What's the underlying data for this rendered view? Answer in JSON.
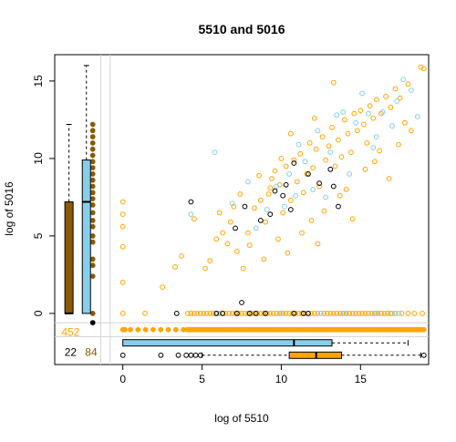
{
  "chart_data": {
    "type": "scatter",
    "title": "5510  and 5016",
    "xlabel": "log of 5510",
    "ylabel": "log of 5016",
    "xlim": [
      -4.3,
      19.3
    ],
    "ylim": [
      -3.3,
      16.7
    ],
    "x_ticks": [
      0,
      5,
      10,
      15
    ],
    "y_ticks": [
      0,
      5,
      10,
      15
    ],
    "grid": false,
    "legend": "none",
    "colors": {
      "orange": "#FFA500",
      "lightblue": "#87CEEB",
      "black": "#000000",
      "brown": "#8B5A00",
      "divider": "#d3d3d3"
    },
    "counts": [
      {
        "label": "452",
        "color": "#FFA500"
      },
      {
        "label": "22",
        "color": "#000000"
      },
      {
        "label": "84",
        "color": "#8B5A00"
      }
    ],
    "boxplots_x": [
      {
        "color": "#87CEEB",
        "whisker_low": 0,
        "q1": 0,
        "median": 10.8,
        "q3": 13.2,
        "whisker_high": 18.0,
        "outliers": []
      },
      {
        "color": "#FFA500",
        "whisker_low": 5.0,
        "q1": 10.5,
        "median": 12.2,
        "q3": 13.8,
        "whisker_high": 18.8,
        "outliers": [
          0,
          2.4,
          3.5,
          4.0,
          4.3,
          4.6,
          4.9,
          19.0
        ]
      }
    ],
    "boxplots_y": [
      {
        "color": "#8B5A00",
        "whisker_low": 0,
        "q1": 0,
        "median": 0,
        "q3": 7.2,
        "whisker_high": 12.2,
        "outliers": []
      },
      {
        "color": "#87CEEB",
        "whisker_low": 0,
        "q1": 0,
        "median": 7.2,
        "q3": 9.9,
        "whisker_high": 16.0,
        "outliers": []
      }
    ],
    "strip_y_values": [
      0,
      2.4,
      3.1,
      3.5,
      4.6,
      5.0,
      5.6,
      6.0,
      6.5,
      7.0,
      7.4,
      7.8,
      8.2,
      8.6,
      9.0,
      9.4,
      9.8,
      10.2,
      10.6,
      11.0,
      11.4,
      11.8,
      12.2
    ],
    "series": [
      {
        "name": "",
        "color": "#FFA500",
        "points": [
          [
            0,
            7.2
          ],
          [
            0,
            6.4
          ],
          [
            0,
            5.6
          ],
          [
            0,
            4.3
          ],
          [
            0,
            2.0
          ],
          [
            3.3,
            3.0
          ],
          [
            3.7,
            3.7
          ],
          [
            2.5,
            1.7
          ],
          [
            5.2,
            2.9
          ],
          [
            5.5,
            3.4
          ],
          [
            6.3,
            5.2
          ],
          [
            6.8,
            5.9
          ],
          [
            6.1,
            6.5
          ],
          [
            4.5,
            6.1
          ],
          [
            7.0,
            6.9
          ],
          [
            7.4,
            7.7
          ],
          [
            7.9,
            5.2
          ],
          [
            8.3,
            6.8
          ],
          [
            8.7,
            7.3
          ],
          [
            9.0,
            5.9
          ],
          [
            9.2,
            7.7
          ],
          [
            9.4,
            8.7
          ],
          [
            9.6,
            9.2
          ],
          [
            9.9,
            8.3
          ],
          [
            10.1,
            6.5
          ],
          [
            10.3,
            9.5
          ],
          [
            10.6,
            7.3
          ],
          [
            10.8,
            9.9
          ],
          [
            11.0,
            8.5
          ],
          [
            11.2,
            10.3
          ],
          [
            11.4,
            7.8
          ],
          [
            11.6,
            9.0
          ],
          [
            11.8,
            11.0
          ],
          [
            12.0,
            9.4
          ],
          [
            12.2,
            10.6
          ],
          [
            12.4,
            8.2
          ],
          [
            12.6,
            11.4
          ],
          [
            12.8,
            9.9
          ],
          [
            13.0,
            10.8
          ],
          [
            13.2,
            12.0
          ],
          [
            13.4,
            9.5
          ],
          [
            13.6,
            11.2
          ],
          [
            13.8,
            10.1
          ],
          [
            14.0,
            12.5
          ],
          [
            14.2,
            11.6
          ],
          [
            14.4,
            10.4
          ],
          [
            14.6,
            12.9
          ],
          [
            14.8,
            11.8
          ],
          [
            15.0,
            13.1
          ],
          [
            15.2,
            12.2
          ],
          [
            15.4,
            11.0
          ],
          [
            15.6,
            13.4
          ],
          [
            15.8,
            12.6
          ],
          [
            16.0,
            13.8
          ],
          [
            16.3,
            12.9
          ],
          [
            16.6,
            14.0
          ],
          [
            16.9,
            13.3
          ],
          [
            17.2,
            14.5
          ],
          [
            17.5,
            13.9
          ],
          [
            18.0,
            14.8
          ],
          [
            18.8,
            15.9
          ],
          [
            19.0,
            15.8
          ],
          [
            13.3,
            14.9
          ],
          [
            12.1,
            12.6
          ],
          [
            10.6,
            11.6
          ],
          [
            8.0,
            4.4
          ],
          [
            7.6,
            2.9
          ],
          [
            9.8,
            4.8
          ],
          [
            11.3,
            5.2
          ],
          [
            12.7,
            6.6
          ],
          [
            14.1,
            8.0
          ],
          [
            15.3,
            9.3
          ],
          [
            16.2,
            10.5
          ],
          [
            17.8,
            12.3
          ],
          [
            10.0,
            10.0
          ],
          [
            9.3,
            8.1
          ],
          [
            8.6,
            8.9
          ],
          [
            11.9,
            6.0
          ],
          [
            13.7,
            7.6
          ],
          [
            15.9,
            9.8
          ],
          [
            7.2,
            4.0
          ],
          [
            6.6,
            4.5
          ],
          [
            5.9,
            4.8
          ],
          [
            8.9,
            3.5
          ],
          [
            10.4,
            3.9
          ],
          [
            12.3,
            4.5
          ],
          [
            14.5,
            6.1
          ],
          [
            16.8,
            8.7
          ],
          [
            17.4,
            10.9
          ],
          [
            18.2,
            11.8
          ]
        ]
      },
      {
        "name": "",
        "color": "#87CEEB",
        "points": [
          [
            5.8,
            10.4
          ],
          [
            4.3,
            6.4
          ],
          [
            7.9,
            8.5
          ],
          [
            9.7,
            8.2
          ],
          [
            10.2,
            6.9
          ],
          [
            10.9,
            7.6
          ],
          [
            11.5,
            9.8
          ],
          [
            12.3,
            11.8
          ],
          [
            13.1,
            10.4
          ],
          [
            13.9,
            13.0
          ],
          [
            14.7,
            12.3
          ],
          [
            15.5,
            12.9
          ],
          [
            16.4,
            13.0
          ],
          [
            17.3,
            13.7
          ],
          [
            18.2,
            14.4
          ],
          [
            18.6,
            12.7
          ],
          [
            9.1,
            6.7
          ],
          [
            8.4,
            5.5
          ],
          [
            12.0,
            8.0
          ],
          [
            14.3,
            9.0
          ],
          [
            16.0,
            11.4
          ],
          [
            11.1,
            10.9
          ],
          [
            13.5,
            12.8
          ],
          [
            15.1,
            14.2
          ],
          [
            17.7,
            15.1
          ],
          [
            10.5,
            9.0
          ],
          [
            12.8,
            7.5
          ],
          [
            6.9,
            7.1
          ],
          [
            15.8,
            10.7
          ],
          [
            17.0,
            12.1
          ]
        ]
      },
      {
        "name": "",
        "color": "#000000",
        "points": [
          [
            4.3,
            7.2
          ],
          [
            7.7,
            6.9
          ],
          [
            7.5,
            0.7
          ],
          [
            8.7,
            6.0
          ],
          [
            9.3,
            6.4
          ],
          [
            10.1,
            7.6
          ],
          [
            10.3,
            8.3
          ],
          [
            10.8,
            9.7
          ],
          [
            11.7,
            9.0
          ],
          [
            12.4,
            8.4
          ],
          [
            13.1,
            9.3
          ],
          [
            13.3,
            8.2
          ],
          [
            10.6,
            6.7
          ],
          [
            9.6,
            7.9
          ],
          [
            7.1,
            5.5
          ],
          [
            13.6,
            6.9
          ]
        ]
      }
    ],
    "zero_y_series": [
      {
        "color": "#FFA500",
        "x": [
          0,
          1.4,
          4.1,
          4.3,
          4.5,
          4.7,
          4.9,
          5.1,
          5.3,
          5.5,
          5.7,
          5.9,
          6.1,
          6.3,
          6.5,
          6.7,
          6.9,
          7.1,
          7.3,
          7.5,
          7.7,
          7.9,
          8.1,
          8.3,
          8.5,
          8.7,
          8.9,
          9.1,
          9.3,
          9.5,
          9.7,
          9.9,
          10.1,
          10.3,
          10.5,
          10.7,
          10.9,
          11.1,
          11.3,
          11.5,
          11.7,
          11.9,
          12.1,
          12.3,
          12.5,
          12.7,
          12.9,
          13.1,
          13.3,
          13.5,
          13.7,
          13.9,
          14.1,
          14.3,
          14.5,
          14.7,
          14.9,
          15.1,
          15.3,
          15.5,
          15.7,
          15.9,
          16.1,
          16.3,
          16.5,
          16.7,
          16.9,
          17.2,
          17.6,
          18.0,
          18.4,
          18.9
        ]
      },
      {
        "color": "#87CEEB",
        "x": [
          6.0,
          8.0,
          10.0,
          12.5,
          14.0,
          16.0,
          17.0,
          17.4
        ]
      },
      {
        "color": "#000000",
        "x": [
          3.4,
          5.9,
          6.3,
          7.2,
          8.0,
          8.4,
          9.0,
          10.8,
          11.4,
          11.7
        ]
      }
    ],
    "strip_x_orange_solid": [
      0,
      1.4,
      4.0,
      5.0,
      6.0,
      7.0,
      8.0,
      9.0,
      10.0,
      11.0,
      12.0,
      13.0,
      14.0,
      15.0,
      16.0,
      17.0,
      18.0,
      19.0
    ]
  }
}
